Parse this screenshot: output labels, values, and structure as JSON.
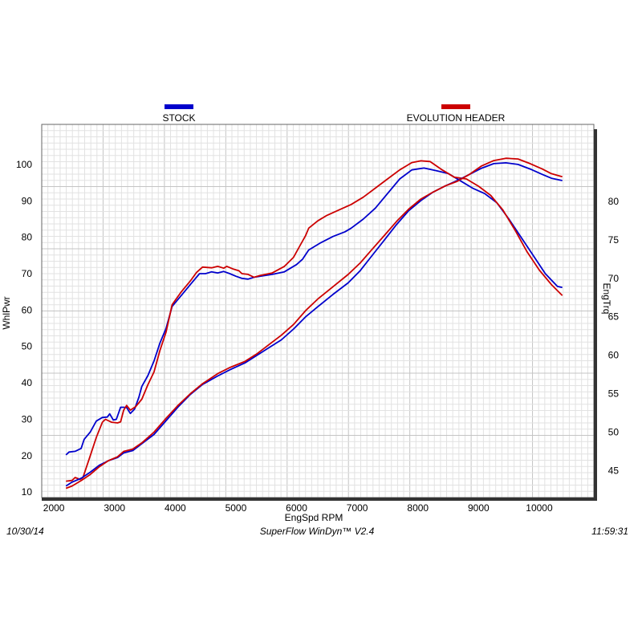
{
  "chart_data": {
    "type": "line",
    "xlabel": "EngSpd  RPM",
    "ylabel_left": "WhlPwr",
    "ylabel_right": "EngTrq",
    "xlim": [
      1800,
      10900
    ],
    "ylim_left": [
      8.5,
      111
    ],
    "ylim_right": [
      41.5,
      90
    ],
    "x_ticks": [
      2000,
      3000,
      4000,
      5000,
      6000,
      7000,
      8000,
      9000,
      10000
    ],
    "y_left_ticks": [
      10,
      20,
      30,
      40,
      50,
      60,
      70,
      80,
      90,
      100
    ],
    "y_right_ticks": [
      45,
      50,
      55,
      60,
      65,
      70,
      75,
      80
    ],
    "grid": true,
    "legend": [
      {
        "name": "STOCK",
        "color": "#0000cc"
      },
      {
        "name": "EVOLUTION HEADER",
        "color": "#cc0000"
      }
    ],
    "series": [
      {
        "name": "STOCK",
        "metric": "WhlPwr",
        "axis": "left",
        "color": "#0000cc",
        "points": [
          [
            2200,
            20.2
          ],
          [
            2250,
            21
          ],
          [
            2350,
            21.2
          ],
          [
            2450,
            22
          ],
          [
            2500,
            24.5
          ],
          [
            2600,
            26.5
          ],
          [
            2700,
            29.5
          ],
          [
            2800,
            30.5
          ],
          [
            2880,
            30.6
          ],
          [
            2920,
            31.5
          ],
          [
            2980,
            29.8
          ],
          [
            3030,
            30
          ],
          [
            3100,
            33.3
          ],
          [
            3150,
            33.3
          ],
          [
            3200,
            33.2
          ],
          [
            3260,
            31.6
          ],
          [
            3330,
            32.8
          ],
          [
            3400,
            36
          ],
          [
            3450,
            39
          ],
          [
            3550,
            42
          ],
          [
            3650,
            46
          ],
          [
            3750,
            51
          ],
          [
            3850,
            55
          ],
          [
            3950,
            61
          ],
          [
            4100,
            64
          ],
          [
            4250,
            67
          ],
          [
            4400,
            70
          ],
          [
            4500,
            70
          ],
          [
            4600,
            70.5
          ],
          [
            4700,
            70.2
          ],
          [
            4800,
            70.6
          ],
          [
            4900,
            70
          ],
          [
            5000,
            69.3
          ],
          [
            5100,
            68.7
          ],
          [
            5200,
            68.5
          ],
          [
            5300,
            69
          ],
          [
            5400,
            69.3
          ],
          [
            5600,
            69.8
          ],
          [
            5800,
            70.5
          ],
          [
            6000,
            72.5
          ],
          [
            6100,
            74
          ],
          [
            6200,
            76.5
          ],
          [
            6400,
            78.5
          ],
          [
            6600,
            80.2
          ],
          [
            6800,
            81.5
          ],
          [
            6900,
            82.5
          ],
          [
            7100,
            85
          ],
          [
            7300,
            88
          ],
          [
            7500,
            92
          ],
          [
            7700,
            96
          ],
          [
            7900,
            98.5
          ],
          [
            8100,
            99
          ],
          [
            8300,
            98.3
          ],
          [
            8500,
            97.5
          ],
          [
            8700,
            95.5
          ],
          [
            8900,
            93.5
          ],
          [
            9100,
            92
          ],
          [
            9300,
            89.5
          ],
          [
            9500,
            85
          ],
          [
            9700,
            80
          ],
          [
            9900,
            75
          ],
          [
            10100,
            70
          ],
          [
            10300,
            66.5
          ],
          [
            10380,
            66.2
          ]
        ]
      },
      {
        "name": "EVOLUTION HEADER",
        "metric": "WhlPwr",
        "axis": "left",
        "color": "#cc0000",
        "points": [
          [
            2200,
            13
          ],
          [
            2300,
            13.2
          ],
          [
            2350,
            14
          ],
          [
            2430,
            13.5
          ],
          [
            2480,
            14
          ],
          [
            2520,
            16
          ],
          [
            2600,
            20
          ],
          [
            2700,
            25
          ],
          [
            2800,
            29.2
          ],
          [
            2850,
            30
          ],
          [
            2950,
            29.2
          ],
          [
            3050,
            29
          ],
          [
            3100,
            29.3
          ],
          [
            3150,
            32.5
          ],
          [
            3200,
            33.8
          ],
          [
            3260,
            32.5
          ],
          [
            3350,
            33.5
          ],
          [
            3450,
            35.5
          ],
          [
            3550,
            39.5
          ],
          [
            3650,
            43
          ],
          [
            3750,
            49
          ],
          [
            3850,
            54
          ],
          [
            3950,
            61.5
          ],
          [
            4100,
            65
          ],
          [
            4250,
            68
          ],
          [
            4350,
            70.3
          ],
          [
            4450,
            71.8
          ],
          [
            4600,
            71.6
          ],
          [
            4700,
            72
          ],
          [
            4800,
            71.5
          ],
          [
            4850,
            72
          ],
          [
            4950,
            71.3
          ],
          [
            5050,
            70.8
          ],
          [
            5100,
            70
          ],
          [
            5200,
            69.8
          ],
          [
            5300,
            69
          ],
          [
            5400,
            69.5
          ],
          [
            5600,
            70.2
          ],
          [
            5800,
            72
          ],
          [
            5950,
            74.5
          ],
          [
            6050,
            77.5
          ],
          [
            6150,
            80.5
          ],
          [
            6200,
            82.5
          ],
          [
            6350,
            84.5
          ],
          [
            6500,
            86
          ],
          [
            6700,
            87.5
          ],
          [
            6900,
            89
          ],
          [
            7100,
            91
          ],
          [
            7300,
            93.5
          ],
          [
            7500,
            96
          ],
          [
            7700,
            98.5
          ],
          [
            7900,
            100.5
          ],
          [
            8050,
            101
          ],
          [
            8200,
            100.8
          ],
          [
            8400,
            98.5
          ],
          [
            8600,
            96.5
          ],
          [
            8800,
            96
          ],
          [
            9000,
            94
          ],
          [
            9200,
            91.5
          ],
          [
            9400,
            87.5
          ],
          [
            9600,
            82
          ],
          [
            9800,
            76
          ],
          [
            10000,
            71
          ],
          [
            10200,
            67
          ],
          [
            10380,
            64
          ]
        ]
      },
      {
        "name": "STOCK",
        "metric": "EngTrq",
        "axis": "right",
        "color": "#0000cc",
        "points": [
          [
            2200,
            43
          ],
          [
            2300,
            43.5
          ],
          [
            2450,
            44
          ],
          [
            2600,
            44.8
          ],
          [
            2750,
            45.7
          ],
          [
            2900,
            46.3
          ],
          [
            3050,
            46.7
          ],
          [
            3150,
            47.3
          ],
          [
            3300,
            47.6
          ],
          [
            3450,
            48.5
          ],
          [
            3650,
            49.7
          ],
          [
            3850,
            51.5
          ],
          [
            4050,
            53.3
          ],
          [
            4250,
            54.9
          ],
          [
            4450,
            56.2
          ],
          [
            4700,
            57.3
          ],
          [
            4900,
            58.1
          ],
          [
            5150,
            59
          ],
          [
            5350,
            60
          ],
          [
            5550,
            61
          ],
          [
            5750,
            62
          ],
          [
            5950,
            63.4
          ],
          [
            6150,
            65
          ],
          [
            6350,
            66.3
          ],
          [
            6600,
            67.9
          ],
          [
            6850,
            69.4
          ],
          [
            7050,
            71
          ],
          [
            7250,
            73
          ],
          [
            7450,
            75
          ],
          [
            7650,
            77
          ],
          [
            7850,
            78.8
          ],
          [
            8050,
            80.1
          ],
          [
            8250,
            81.2
          ],
          [
            8450,
            82
          ],
          [
            8650,
            82.7
          ],
          [
            8850,
            83.5
          ],
          [
            9050,
            84.3
          ],
          [
            9250,
            84.9
          ],
          [
            9450,
            85
          ],
          [
            9650,
            84.8
          ],
          [
            9850,
            84.2
          ],
          [
            10050,
            83.5
          ],
          [
            10200,
            83
          ],
          [
            10380,
            82.7
          ]
        ]
      },
      {
        "name": "EVOLUTION HEADER",
        "metric": "EngTrq",
        "axis": "right",
        "color": "#cc0000",
        "points": [
          [
            2200,
            42.7
          ],
          [
            2300,
            43
          ],
          [
            2450,
            43.7
          ],
          [
            2600,
            44.5
          ],
          [
            2750,
            45.5
          ],
          [
            2900,
            46.3
          ],
          [
            3050,
            46.8
          ],
          [
            3150,
            47.5
          ],
          [
            3300,
            47.8
          ],
          [
            3450,
            48.6
          ],
          [
            3650,
            50
          ],
          [
            3850,
            51.8
          ],
          [
            4050,
            53.5
          ],
          [
            4250,
            55
          ],
          [
            4450,
            56.3
          ],
          [
            4700,
            57.6
          ],
          [
            4900,
            58.4
          ],
          [
            5150,
            59.2
          ],
          [
            5350,
            60.2
          ],
          [
            5550,
            61.4
          ],
          [
            5750,
            62.6
          ],
          [
            5950,
            64
          ],
          [
            6150,
            65.8
          ],
          [
            6350,
            67.3
          ],
          [
            6600,
            68.9
          ],
          [
            6850,
            70.5
          ],
          [
            7050,
            72
          ],
          [
            7250,
            73.8
          ],
          [
            7450,
            75.6
          ],
          [
            7650,
            77.4
          ],
          [
            7850,
            79
          ],
          [
            8050,
            80.3
          ],
          [
            8250,
            81.2
          ],
          [
            8450,
            82
          ],
          [
            8650,
            82.6
          ],
          [
            8850,
            83.5
          ],
          [
            9050,
            84.6
          ],
          [
            9250,
            85.3
          ],
          [
            9450,
            85.6
          ],
          [
            9650,
            85.5
          ],
          [
            9850,
            84.9
          ],
          [
            10050,
            84.2
          ],
          [
            10200,
            83.6
          ],
          [
            10380,
            83.2
          ]
        ]
      }
    ]
  },
  "footer": {
    "date": "10/30/14",
    "software": "SuperFlow WinDyn™  V2.4",
    "time": "11:59:31"
  }
}
